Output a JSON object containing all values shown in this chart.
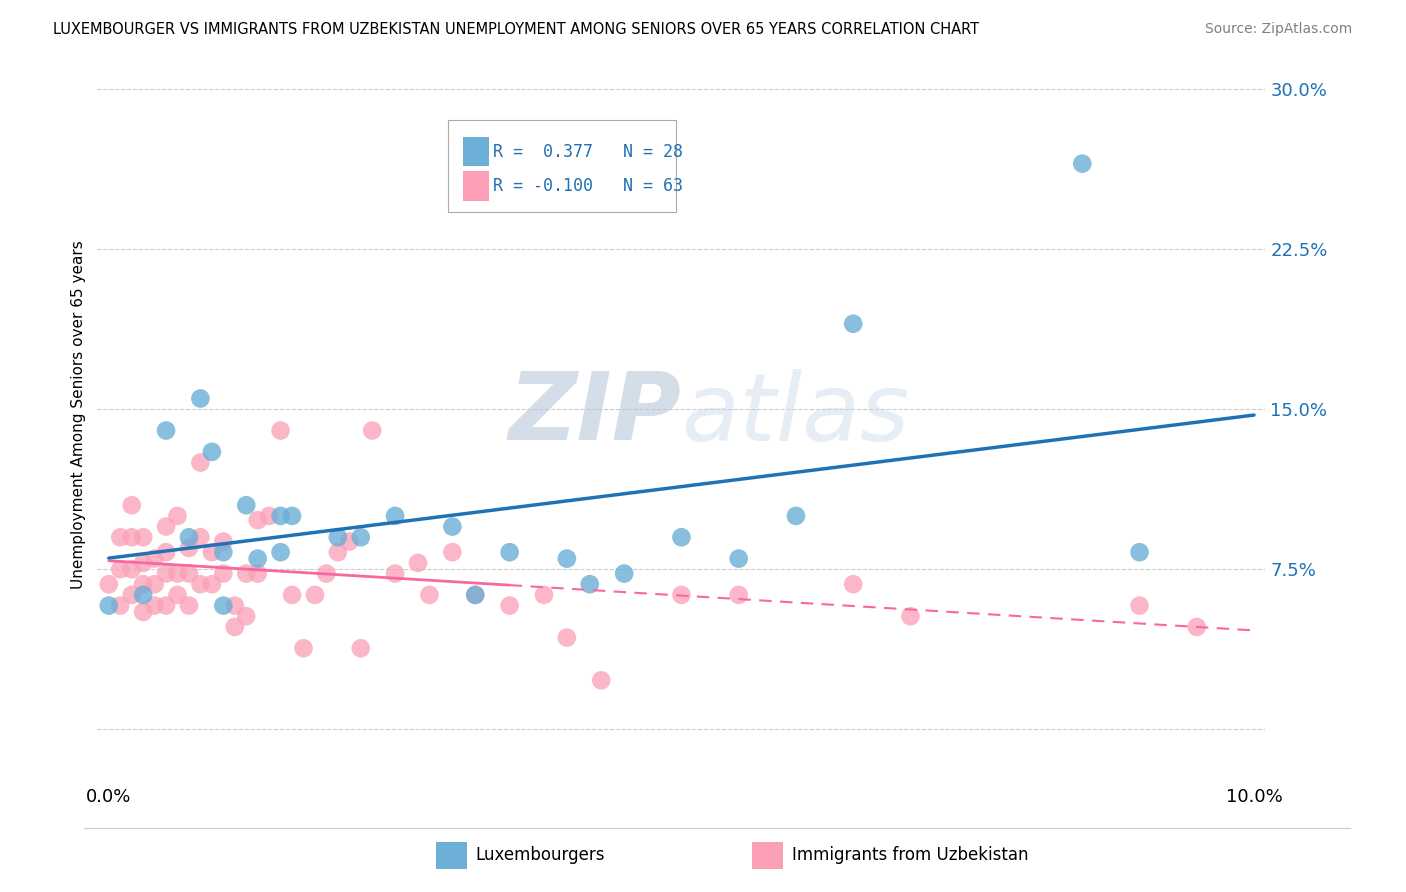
{
  "title": "LUXEMBOURGER VS IMMIGRANTS FROM UZBEKISTAN UNEMPLOYMENT AMONG SENIORS OVER 65 YEARS CORRELATION CHART",
  "source": "Source: ZipAtlas.com",
  "ylabel": "Unemployment Among Seniors over 65 years",
  "xlabel_lux": "Luxembourgers",
  "xlabel_uzb": "Immigrants from Uzbekistan",
  "xlim": [
    -0.001,
    0.101
  ],
  "ylim": [
    -0.025,
    0.32
  ],
  "yticks": [
    0.0,
    0.075,
    0.15,
    0.225,
    0.3
  ],
  "ytick_labels": [
    "",
    "7.5%",
    "15.0%",
    "22.5%",
    "30.0%"
  ],
  "xtick_labels": [
    "0.0%",
    "10.0%"
  ],
  "r_lux": 0.377,
  "n_lux": 28,
  "r_uzb": -0.1,
  "n_uzb": 63,
  "color_lux": "#6baed6",
  "color_uzb": "#fa9fb5",
  "line_color_lux": "#2171b5",
  "line_color_uzb": "#f768a1",
  "watermark_zip": "ZIP",
  "watermark_atlas": "atlas",
  "lux_x": [
    0.0,
    0.003,
    0.005,
    0.007,
    0.008,
    0.009,
    0.01,
    0.01,
    0.012,
    0.013,
    0.015,
    0.015,
    0.016,
    0.02,
    0.022,
    0.025,
    0.03,
    0.032,
    0.035,
    0.04,
    0.042,
    0.045,
    0.05,
    0.055,
    0.06,
    0.065,
    0.085,
    0.09
  ],
  "lux_y": [
    0.058,
    0.063,
    0.14,
    0.09,
    0.155,
    0.13,
    0.058,
    0.083,
    0.105,
    0.08,
    0.083,
    0.1,
    0.1,
    0.09,
    0.09,
    0.1,
    0.095,
    0.063,
    0.083,
    0.08,
    0.068,
    0.073,
    0.09,
    0.08,
    0.1,
    0.19,
    0.265,
    0.083
  ],
  "uzb_x": [
    0.0,
    0.001,
    0.001,
    0.001,
    0.002,
    0.002,
    0.002,
    0.002,
    0.003,
    0.003,
    0.003,
    0.003,
    0.004,
    0.004,
    0.004,
    0.005,
    0.005,
    0.005,
    0.005,
    0.006,
    0.006,
    0.006,
    0.007,
    0.007,
    0.007,
    0.008,
    0.008,
    0.008,
    0.009,
    0.009,
    0.01,
    0.01,
    0.011,
    0.011,
    0.012,
    0.012,
    0.013,
    0.013,
    0.014,
    0.015,
    0.016,
    0.017,
    0.018,
    0.019,
    0.02,
    0.021,
    0.022,
    0.023,
    0.025,
    0.027,
    0.028,
    0.03,
    0.032,
    0.035,
    0.038,
    0.04,
    0.043,
    0.05,
    0.055,
    0.065,
    0.07,
    0.09,
    0.095
  ],
  "uzb_y": [
    0.068,
    0.058,
    0.075,
    0.09,
    0.063,
    0.075,
    0.09,
    0.105,
    0.055,
    0.068,
    0.078,
    0.09,
    0.058,
    0.068,
    0.08,
    0.058,
    0.073,
    0.083,
    0.095,
    0.063,
    0.073,
    0.1,
    0.058,
    0.073,
    0.085,
    0.068,
    0.09,
    0.125,
    0.068,
    0.083,
    0.073,
    0.088,
    0.048,
    0.058,
    0.053,
    0.073,
    0.073,
    0.098,
    0.1,
    0.14,
    0.063,
    0.038,
    0.063,
    0.073,
    0.083,
    0.088,
    0.038,
    0.14,
    0.073,
    0.078,
    0.063,
    0.083,
    0.063,
    0.058,
    0.063,
    0.043,
    0.023,
    0.063,
    0.063,
    0.068,
    0.053,
    0.058,
    0.048
  ]
}
